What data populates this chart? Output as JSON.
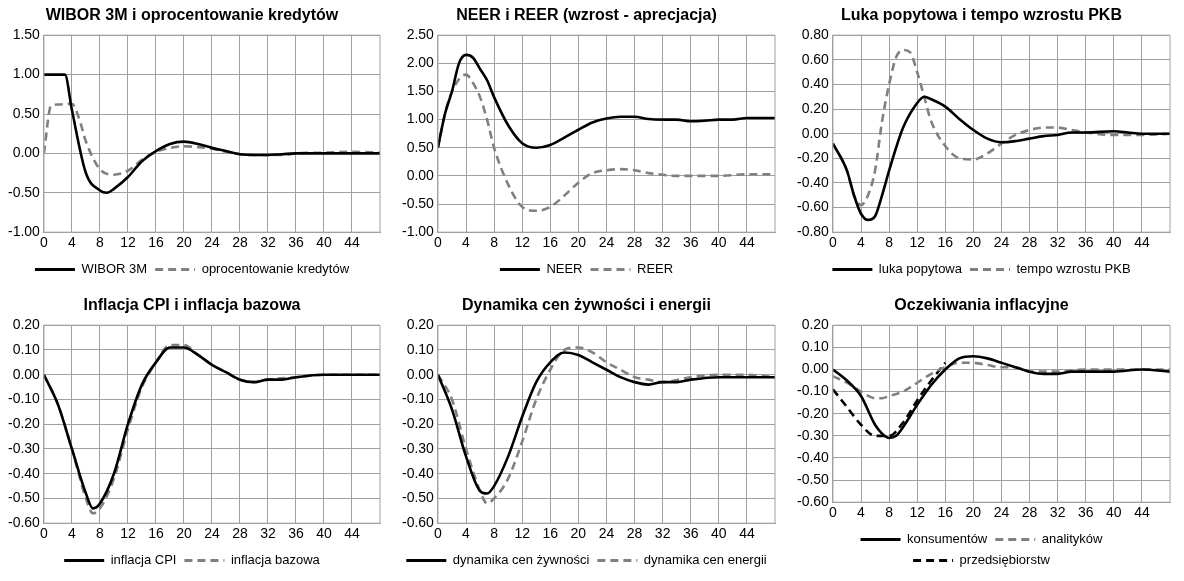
{
  "chart_data": [
    {
      "type": "line",
      "title": "WIBOR 3M i oprocentowanie kredytów",
      "xlim": [
        0,
        48
      ],
      "xticks": [
        0,
        4,
        8,
        12,
        16,
        20,
        24,
        28,
        32,
        36,
        40,
        44
      ],
      "ylim": [
        -1,
        1.5
      ],
      "yticks": [
        {
          "value": -1,
          "label": "-1.00"
        },
        {
          "value": -0.5,
          "label": "-0.50"
        },
        {
          "value": 0,
          "label": "0.00"
        },
        {
          "value": 0.5,
          "label": "0.50"
        },
        {
          "value": 1,
          "label": "1.00"
        },
        {
          "value": 1.5,
          "label": "1.50"
        }
      ],
      "grid": true,
      "legend": "bottom",
      "marker": "none",
      "series": [
        {
          "name": "WIBOR 3M",
          "color": "#000000",
          "line_style": "solid",
          "x": [
            0,
            1,
            2,
            3,
            4,
            6,
            8,
            9,
            10,
            12,
            14,
            16,
            18,
            20,
            22,
            24,
            26,
            28,
            30,
            32,
            34,
            36,
            40,
            44,
            48
          ],
          "values": [
            1,
            1,
            1,
            1,
            0.55,
            -0.25,
            -0.47,
            -0.5,
            -0.45,
            -0.3,
            -0.1,
            0.03,
            0.12,
            0.15,
            0.12,
            0.07,
            0.03,
            -0.01,
            -0.02,
            -0.02,
            -0.01,
            0,
            0,
            0,
            0
          ]
        },
        {
          "name": "oprocentowanie kredytów",
          "color": "#808080",
          "line_style": "dashed",
          "x": [
            0,
            1,
            2,
            4,
            5,
            6,
            8,
            10,
            12,
            14,
            16,
            18,
            20,
            22,
            24,
            26,
            28,
            30,
            32,
            34,
            36,
            40,
            44,
            48
          ],
          "values": [
            0,
            0.6,
            0.62,
            0.63,
            0.45,
            0.15,
            -0.2,
            -0.27,
            -0.22,
            -0.08,
            0.02,
            0.07,
            0.09,
            0.08,
            0.06,
            0.02,
            -0.01,
            -0.02,
            -0.02,
            -0.02,
            0,
            0.01,
            0.02,
            0.01
          ]
        }
      ]
    },
    {
      "type": "line",
      "title": "NEER i REER (wzrost - aprecjacja)",
      "xlim": [
        0,
        48
      ],
      "xticks": [
        0,
        4,
        8,
        12,
        16,
        20,
        24,
        28,
        32,
        36,
        40,
        44
      ],
      "ylim": [
        -1,
        2.5
      ],
      "yticks": [
        {
          "value": -1,
          "label": "-1.00"
        },
        {
          "value": -0.5,
          "label": "-0.50"
        },
        {
          "value": 0,
          "label": "0.00"
        },
        {
          "value": 0.5,
          "label": "0.50"
        },
        {
          "value": 1,
          "label": "1.00"
        },
        {
          "value": 1.5,
          "label": "1.50"
        },
        {
          "value": 2,
          "label": "2.00"
        },
        {
          "value": 2.5,
          "label": "2.50"
        }
      ],
      "grid": true,
      "legend": "bottom",
      "marker": "none",
      "series": [
        {
          "name": "NEER",
          "color": "#000000",
          "line_style": "solid",
          "x": [
            0,
            1,
            2,
            3,
            4,
            5,
            6,
            7,
            8,
            10,
            12,
            14,
            16,
            18,
            20,
            22,
            24,
            26,
            28,
            30,
            32,
            34,
            36,
            38,
            40,
            42,
            44,
            48
          ],
          "values": [
            0.5,
            1.1,
            1.5,
            2,
            2.15,
            2.1,
            1.9,
            1.7,
            1.4,
            0.9,
            0.58,
            0.5,
            0.55,
            0.68,
            0.82,
            0.95,
            1.02,
            1.05,
            1.05,
            1.01,
            1,
            1,
            0.97,
            0.98,
            1,
            1,
            1.03,
            1.03
          ]
        },
        {
          "name": "REER",
          "color": "#808080",
          "line_style": "dashed",
          "x": [
            0,
            1,
            2,
            4,
            5,
            6,
            7,
            8,
            10,
            12,
            14,
            16,
            18,
            20,
            22,
            24,
            26,
            28,
            30,
            32,
            34,
            36,
            40,
            44,
            48
          ],
          "values": [
            0.5,
            1.1,
            1.5,
            1.8,
            1.65,
            1.4,
            1,
            0.5,
            -0.15,
            -0.55,
            -0.62,
            -0.55,
            -0.35,
            -0.12,
            0.05,
            0.1,
            0.12,
            0.1,
            0.05,
            0.02,
            0,
            0,
            0,
            0.03,
            0.03
          ]
        }
      ]
    },
    {
      "type": "line",
      "title": "Luka popytowa i tempo wzrostu PKB",
      "xlim": [
        0,
        48
      ],
      "xticks": [
        0,
        4,
        8,
        12,
        16,
        20,
        24,
        28,
        32,
        36,
        40,
        44
      ],
      "ylim": [
        -0.8,
        0.8
      ],
      "yticks": [
        {
          "value": -0.8,
          "label": "-0.80"
        },
        {
          "value": -0.6,
          "label": "-0.60"
        },
        {
          "value": -0.4,
          "label": "-0.40"
        },
        {
          "value": -0.2,
          "label": "-0.20"
        },
        {
          "value": 0,
          "label": "0.00"
        },
        {
          "value": 0.2,
          "label": "0.20"
        },
        {
          "value": 0.4,
          "label": "0.40"
        },
        {
          "value": 0.6,
          "label": "0.60"
        },
        {
          "value": 0.8,
          "label": "0.80"
        }
      ],
      "grid": true,
      "legend": "bottom",
      "marker": "none",
      "series": [
        {
          "name": "luka popytowa",
          "color": "#000000",
          "line_style": "solid",
          "x": [
            0,
            2,
            3,
            4,
            5,
            6,
            7,
            8,
            10,
            12,
            13,
            14,
            16,
            18,
            20,
            22,
            24,
            26,
            28,
            30,
            32,
            34,
            36,
            40,
            42,
            44,
            48
          ],
          "values": [
            -0.08,
            -0.3,
            -0.5,
            -0.65,
            -0.7,
            -0.67,
            -0.5,
            -0.3,
            0.05,
            0.25,
            0.3,
            0.28,
            0.22,
            0.12,
            0.03,
            -0.04,
            -0.07,
            -0.06,
            -0.04,
            -0.02,
            -0.01,
            0.01,
            0.01,
            0.02,
            0.01,
            0,
            0
          ]
        },
        {
          "name": "tempo wzrostu PKB",
          "color": "#808080",
          "line_style": "dashed",
          "x": [
            0,
            2,
            3,
            4,
            5,
            6,
            7,
            8,
            9,
            10,
            11,
            12,
            13,
            14,
            16,
            18,
            20,
            22,
            24,
            26,
            28,
            30,
            32,
            34,
            36,
            40,
            44,
            48
          ],
          "values": [
            -0.08,
            -0.3,
            -0.5,
            -0.58,
            -0.5,
            -0.3,
            0.1,
            0.4,
            0.62,
            0.68,
            0.66,
            0.5,
            0.3,
            0.1,
            -0.1,
            -0.2,
            -0.21,
            -0.16,
            -0.08,
            -0.01,
            0.03,
            0.05,
            0.05,
            0.03,
            0.01,
            -0.01,
            -0.01,
            0
          ]
        }
      ]
    },
    {
      "type": "line",
      "title": "Inflacja CPI i inflacja bazowa",
      "xlim": [
        0,
        48
      ],
      "xticks": [
        0,
        4,
        8,
        12,
        16,
        20,
        24,
        28,
        32,
        36,
        40,
        44
      ],
      "ylim": [
        -0.6,
        0.2
      ],
      "yticks": [
        {
          "value": -0.6,
          "label": "-0.60"
        },
        {
          "value": -0.5,
          "label": "-0.50"
        },
        {
          "value": -0.4,
          "label": "-0.40"
        },
        {
          "value": -0.3,
          "label": "-0.30"
        },
        {
          "value": -0.2,
          "label": "-0.20"
        },
        {
          "value": -0.1,
          "label": "-0.10"
        },
        {
          "value": 0,
          "label": "0.00"
        },
        {
          "value": 0.1,
          "label": "0.10"
        },
        {
          "value": 0.2,
          "label": "0.20"
        }
      ],
      "grid": true,
      "legend": "bottom",
      "marker": "none",
      "series": [
        {
          "name": "inflacja CPI",
          "color": "#000000",
          "line_style": "solid",
          "x": [
            0,
            2,
            4,
            6,
            7,
            8,
            10,
            12,
            14,
            16,
            18,
            20,
            22,
            24,
            26,
            28,
            30,
            32,
            34,
            36,
            40,
            44,
            48
          ],
          "values": [
            0,
            -0.12,
            -0.3,
            -0.48,
            -0.54,
            -0.52,
            -0.4,
            -0.2,
            -0.04,
            0.05,
            0.11,
            0.11,
            0.08,
            0.04,
            0.01,
            -0.02,
            -0.03,
            -0.02,
            -0.02,
            -0.01,
            0,
            0,
            0
          ]
        },
        {
          "name": "inflacja bazowa",
          "color": "#808080",
          "line_style": "dashed",
          "x": [
            0,
            2,
            4,
            6,
            7,
            8,
            10,
            12,
            14,
            16,
            18,
            20,
            22,
            24,
            26,
            28,
            30,
            32,
            36,
            40,
            44,
            48
          ],
          "values": [
            0,
            -0.12,
            -0.3,
            -0.5,
            -0.56,
            -0.54,
            -0.42,
            -0.22,
            -0.05,
            0.05,
            0.12,
            0.12,
            0.08,
            0.04,
            0.01,
            -0.02,
            -0.03,
            -0.02,
            -0.01,
            0,
            0,
            0
          ]
        }
      ]
    },
    {
      "type": "line",
      "title": "Dynamika cen żywności i energii",
      "xlim": [
        0,
        48
      ],
      "xticks": [
        0,
        4,
        8,
        12,
        16,
        20,
        24,
        28,
        32,
        36,
        40,
        44
      ],
      "ylim": [
        -0.6,
        0.2
      ],
      "yticks": [
        {
          "value": -0.6,
          "label": "-0.60"
        },
        {
          "value": -0.5,
          "label": "-0.50"
        },
        {
          "value": -0.4,
          "label": "-0.40"
        },
        {
          "value": -0.3,
          "label": "-0.30"
        },
        {
          "value": -0.2,
          "label": "-0.20"
        },
        {
          "value": -0.1,
          "label": "-0.10"
        },
        {
          "value": 0,
          "label": "0.00"
        },
        {
          "value": 0.1,
          "label": "0.10"
        },
        {
          "value": 0.2,
          "label": "0.20"
        }
      ],
      "grid": true,
      "legend": "bottom",
      "marker": "none",
      "series": [
        {
          "name": "dynamika cen żywności",
          "color": "#000000",
          "line_style": "solid",
          "x": [
            0,
            2,
            4,
            6,
            7,
            8,
            10,
            12,
            14,
            16,
            18,
            20,
            22,
            24,
            26,
            28,
            30,
            32,
            34,
            36,
            40,
            44,
            48
          ],
          "values": [
            0,
            -0.14,
            -0.33,
            -0.47,
            -0.48,
            -0.45,
            -0.33,
            -0.17,
            -0.03,
            0.05,
            0.09,
            0.08,
            0.05,
            0.02,
            -0.01,
            -0.03,
            -0.04,
            -0.03,
            -0.03,
            -0.02,
            -0.01,
            -0.01,
            -0.01
          ]
        },
        {
          "name": "dynamika cen energii",
          "color": "#808080",
          "line_style": "dashed",
          "x": [
            0,
            2,
            4,
            6,
            7,
            8,
            10,
            12,
            14,
            16,
            18,
            20,
            22,
            24,
            26,
            28,
            30,
            32,
            36,
            40,
            44,
            48
          ],
          "values": [
            0,
            -0.1,
            -0.3,
            -0.47,
            -0.52,
            -0.5,
            -0.42,
            -0.27,
            -0.1,
            0.02,
            0.1,
            0.11,
            0.09,
            0.05,
            0.02,
            -0.01,
            -0.02,
            -0.03,
            -0.01,
            0,
            0,
            -0.01
          ]
        }
      ]
    },
    {
      "type": "line",
      "title": "Oczekiwania inflacyjne",
      "xlim": [
        0,
        48
      ],
      "xticks": [
        0,
        4,
        8,
        12,
        16,
        20,
        24,
        28,
        32,
        36,
        40,
        44
      ],
      "ylim": [
        -0.6,
        0.2
      ],
      "yticks": [
        {
          "value": -0.6,
          "label": "-0.60"
        },
        {
          "value": -0.5,
          "label": "-0.50"
        },
        {
          "value": -0.4,
          "label": "-0.40"
        },
        {
          "value": -0.3,
          "label": "-0.30"
        },
        {
          "value": -0.2,
          "label": "-0.20"
        },
        {
          "value": -0.1,
          "label": "-0.10"
        },
        {
          "value": 0,
          "label": "0.00"
        },
        {
          "value": 0.1,
          "label": "0.10"
        },
        {
          "value": 0.2,
          "label": "0.20"
        }
      ],
      "grid": true,
      "legend": "bottom",
      "marker": "none",
      "series": [
        {
          "name": "konsumentów",
          "color": "#000000",
          "line_style": "solid",
          "x": [
            0,
            2,
            4,
            6,
            7,
            8,
            9,
            10,
            12,
            14,
            16,
            18,
            20,
            22,
            24,
            26,
            28,
            30,
            32,
            34,
            36,
            40,
            44,
            48
          ],
          "values": [
            0,
            -0.05,
            -0.12,
            -0.25,
            -0.29,
            -0.31,
            -0.3,
            -0.26,
            -0.16,
            -0.07,
            0,
            0.05,
            0.06,
            0.05,
            0.03,
            0.01,
            -0.01,
            -0.02,
            -0.02,
            -0.01,
            -0.01,
            -0.01,
            0,
            -0.01
          ]
        },
        {
          "name": "analityków",
          "color": "#808080",
          "line_style": "dashed",
          "x": [
            0,
            2,
            4,
            6,
            7,
            8,
            10,
            12,
            14,
            16,
            18,
            20,
            22,
            24,
            26,
            28,
            30,
            32,
            36,
            40,
            44,
            48
          ],
          "values": [
            -0.03,
            -0.06,
            -0.1,
            -0.13,
            -0.13,
            -0.12,
            -0.1,
            -0.06,
            -0.02,
            0.01,
            0.03,
            0.03,
            0.02,
            0.01,
            0.01,
            -0.01,
            -0.01,
            -0.01,
            0,
            0,
            0,
            0
          ]
        },
        {
          "name": "przedsiębiorstw",
          "color": "#000000",
          "line_style": "dashed",
          "x": [
            0,
            2,
            4,
            6,
            8,
            10,
            12,
            14,
            16
          ],
          "values": [
            -0.09,
            -0.17,
            -0.25,
            -0.3,
            -0.3,
            -0.24,
            -0.14,
            -0.05,
            0.03
          ]
        }
      ]
    }
  ]
}
